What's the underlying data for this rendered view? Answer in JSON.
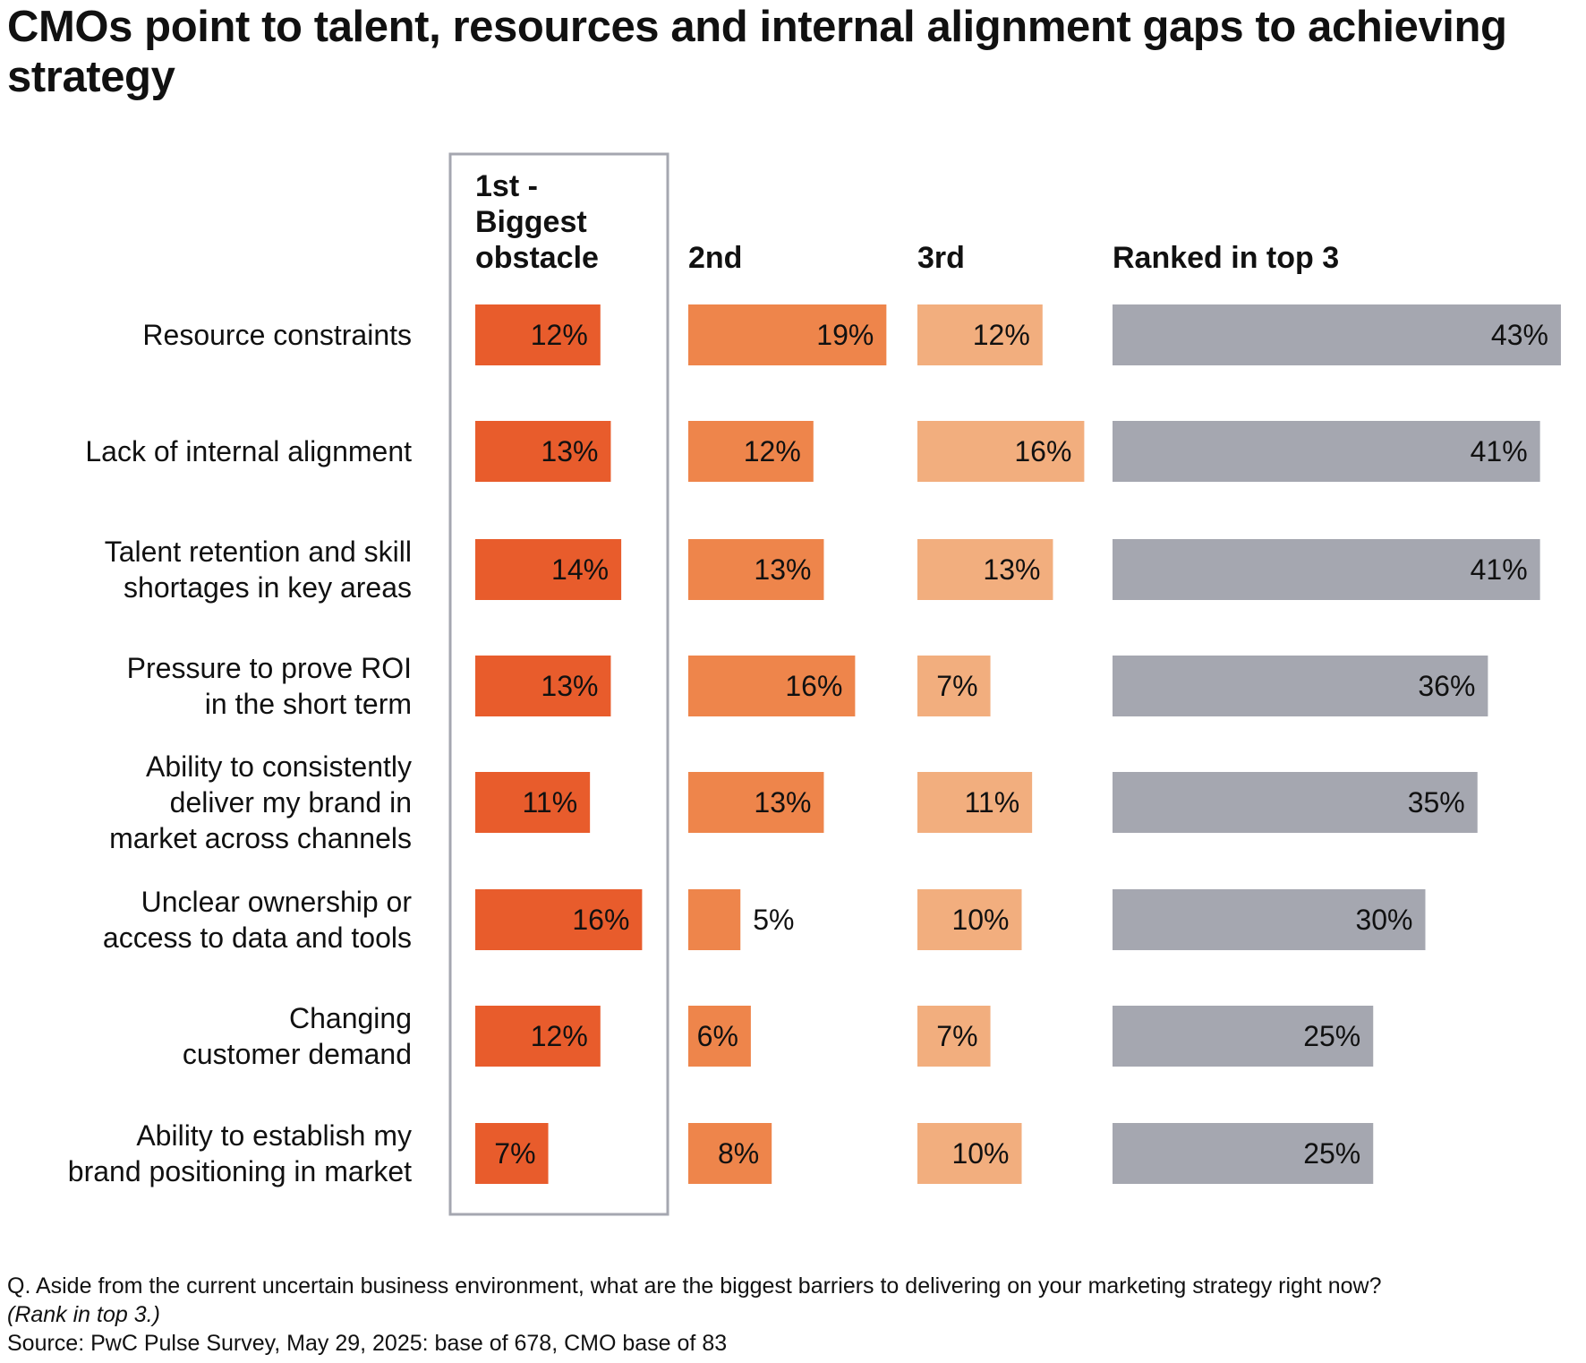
{
  "title": "CMOs point to talent, resources and internal alignment gaps to achieving strategy",
  "footnote": {
    "question": "Q. Aside from the current uncertain business environment, what are the biggest barriers to delivering on your marketing strategy right now?",
    "note": "(Rank in top 3.)",
    "source": "Source: PwC Pulse Survey, May 29, 2025: base of 678, CMO base of 83"
  },
  "colors": {
    "first": "#E85C2C",
    "second": "#EE854B",
    "third": "#F2AE7E",
    "top3": "#A5A7B0",
    "highlight_border": "#A5A7B0"
  },
  "chart_data": {
    "type": "bar",
    "orientation": "horizontal",
    "categories": [
      [
        "Resource constraints"
      ],
      [
        "Lack of internal alignment"
      ],
      [
        "Talent retention and skill",
        "shortages in key areas"
      ],
      [
        "Pressure to prove ROI",
        "in the short term"
      ],
      [
        "Ability to consistently",
        "deliver my brand in",
        "market across channels"
      ],
      [
        "Unclear ownership or",
        "access to data and tools"
      ],
      [
        "Changing",
        "customer demand"
      ],
      [
        "Ability to establish my",
        "brand positioning in market"
      ]
    ],
    "series": [
      {
        "name": "1st - Biggest obstacle",
        "header_lines": [
          "1st -",
          "Biggest",
          "obstacle"
        ],
        "color": "#E85C2C",
        "values": [
          12,
          13,
          14,
          13,
          11,
          16,
          12,
          7
        ]
      },
      {
        "name": "2nd",
        "header_lines": [
          "2nd"
        ],
        "color": "#EE854B",
        "values": [
          19,
          12,
          13,
          16,
          13,
          5,
          6,
          8
        ]
      },
      {
        "name": "3rd",
        "header_lines": [
          "3rd"
        ],
        "color": "#F2AE7E",
        "values": [
          12,
          16,
          13,
          7,
          11,
          10,
          7,
          10
        ]
      },
      {
        "name": "Ranked in top 3",
        "header_lines": [
          "Ranked in top 3"
        ],
        "color": "#A5A7B0",
        "values": [
          43,
          41,
          41,
          36,
          35,
          30,
          25,
          25
        ]
      }
    ],
    "value_suffix": "%",
    "highlighted_series": "1st - Biggest obstacle",
    "grid": false,
    "legend": "column headers"
  }
}
